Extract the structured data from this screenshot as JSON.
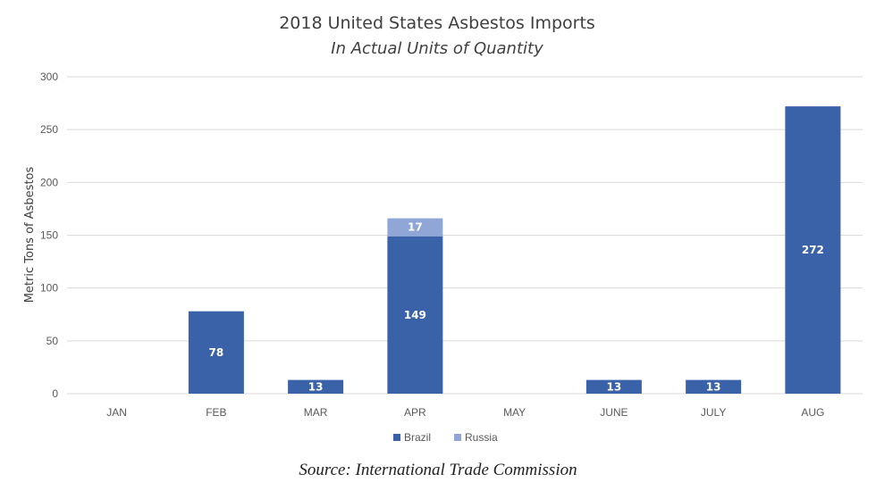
{
  "chart_data": {
    "type": "bar",
    "stacked": true,
    "title": "2018 United States Asbestos Imports",
    "subtitle": "In Actual Units of Quantity",
    "xlabel": "",
    "ylabel": "Metric Tons of Asbestos",
    "ylim": [
      0,
      300
    ],
    "yticks": [
      0,
      50,
      100,
      150,
      200,
      250,
      300
    ],
    "grid": true,
    "legend_position": "bottom",
    "categories": [
      "JAN",
      "FEB",
      "MAR",
      "APR",
      "MAY",
      "JUNE",
      "JULY",
      "AUG"
    ],
    "series": [
      {
        "name": "Brazil",
        "color": "#3a62a8",
        "values": [
          0,
          78,
          13,
          149,
          0,
          13,
          13,
          272
        ]
      },
      {
        "name": "Russia",
        "color": "#8fa6d6",
        "values": [
          0,
          0,
          0,
          17,
          0,
          0,
          0,
          0
        ]
      }
    ]
  },
  "source": "Source: International Trade Commission"
}
